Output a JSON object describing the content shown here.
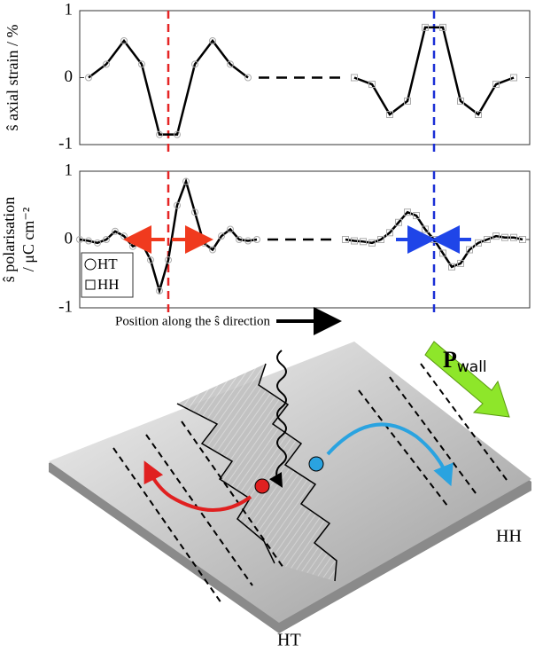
{
  "chart_data": [
    {
      "type": "line",
      "ylabel": "ŝ axial strain / %",
      "xlim": [
        0,
        25.4
      ],
      "ylim": [
        -1,
        1
      ],
      "yticks": [
        -1,
        0,
        1
      ],
      "vlines": [
        {
          "x": 5,
          "color": "#e52424"
        },
        {
          "x": 20,
          "color": "#1a2fd6"
        }
      ],
      "series": [
        {
          "name": "HT",
          "marker": "circle",
          "color": "#000000",
          "x": [
            0.5,
            1.5,
            2.5,
            3.5,
            4.5,
            5.5,
            6.5,
            7.5,
            8.5,
            9.5
          ],
          "values": [
            0,
            0.2,
            0.55,
            0.2,
            -0.85,
            -0.85,
            0.2,
            0.55,
            0.2,
            0
          ]
        },
        {
          "name": "HH",
          "marker": "square",
          "color": "#000000",
          "x": [
            15.5,
            16.5,
            17.5,
            18.5,
            19.5,
            20.5,
            21.5,
            22.5,
            23.5,
            24.5
          ],
          "values": [
            0,
            -0.1,
            -0.55,
            -0.35,
            0.75,
            0.75,
            -0.35,
            -0.55,
            -0.1,
            0
          ]
        }
      ]
    },
    {
      "type": "line",
      "ylabel": [
        "ŝ polarisation",
        "/ μC cm⁻²"
      ],
      "xlabel": "Position along the ŝ direction",
      "legend": "lower left",
      "xlim": [
        0,
        25.4
      ],
      "ylim": [
        -1,
        1
      ],
      "yticks": [
        -1,
        0,
        1
      ],
      "vlines": [
        {
          "x": 5,
          "color": "#e52424"
        },
        {
          "x": 20,
          "color": "#1a2fd6"
        }
      ],
      "series": [
        {
          "name": "HT",
          "marker": "circle",
          "color": "#000000",
          "x": [
            0,
            0.5,
            1,
            1.5,
            2,
            2.5,
            3,
            3.5,
            4,
            4.5,
            5,
            5.5,
            6,
            6.5,
            7,
            7.5,
            8,
            8.5,
            9,
            9.5,
            10
          ],
          "values": [
            0,
            -0.02,
            -0.05,
            0,
            0.12,
            0.05,
            -0.1,
            -0.05,
            -0.3,
            -0.75,
            -0.3,
            0.5,
            0.85,
            0.4,
            -0.05,
            -0.15,
            0.05,
            0.15,
            0,
            -0.02,
            0
          ]
        },
        {
          "name": "HH",
          "marker": "square",
          "color": "#000000",
          "x": [
            15,
            15.5,
            16,
            16.5,
            17,
            17.5,
            18,
            18.5,
            19,
            19.5,
            20,
            20.5,
            21,
            21.5,
            22,
            22.5,
            23,
            23.5,
            24,
            24.5,
            25
          ],
          "values": [
            0,
            -0.02,
            -0.03,
            -0.05,
            0,
            0.1,
            0.25,
            0.4,
            0.35,
            0.15,
            0,
            -0.2,
            -0.4,
            -0.35,
            -0.15,
            -0.05,
            0,
            0.05,
            0.03,
            0.03,
            0
          ]
        }
      ]
    }
  ],
  "diagram": {
    "p_wall": "P",
    "p_wall_sub": "wall",
    "label_hh": "HH",
    "label_ht": "HT"
  }
}
